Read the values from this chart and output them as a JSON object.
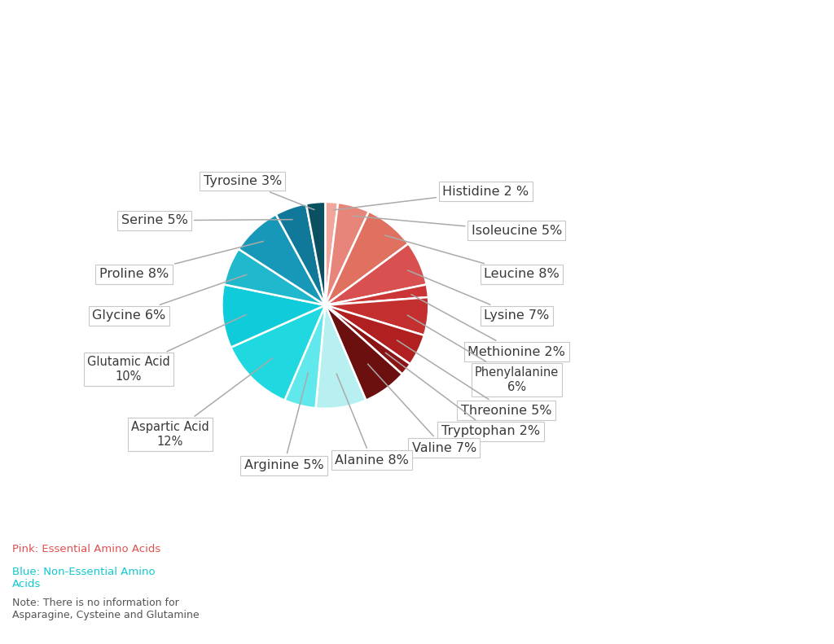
{
  "slices": [
    {
      "label": "Histidine 2 %",
      "value": 2,
      "color": "#F2A59A",
      "essential": true
    },
    {
      "label": "Isoleucine 5%",
      "value": 5,
      "color": "#E8857A",
      "essential": true
    },
    {
      "label": "Leucine 8%",
      "value": 8,
      "color": "#E07060",
      "essential": true
    },
    {
      "label": "Lysine 7%",
      "value": 7,
      "color": "#D95050",
      "essential": true
    },
    {
      "label": "Methionine 2%",
      "value": 2,
      "color": "#CC3535",
      "essential": true
    },
    {
      "label": "Phenylalanine\n6%",
      "value": 6,
      "color": "#C43030",
      "essential": true
    },
    {
      "label": "Threonine 5%",
      "value": 5,
      "color": "#B02020",
      "essential": true
    },
    {
      "label": "Tryptophan 2%",
      "value": 2,
      "color": "#8B1515",
      "essential": true
    },
    {
      "label": "Valine 7%",
      "value": 7,
      "color": "#6B0F0F",
      "essential": true
    },
    {
      "label": "Alanine 8%",
      "value": 8,
      "color": "#B8F0F2",
      "essential": false
    },
    {
      "label": "Arginine 5%",
      "value": 5,
      "color": "#60E8EC",
      "essential": false
    },
    {
      "label": "Aspartic Acid\n12%",
      "value": 12,
      "color": "#20D8E0",
      "essential": false
    },
    {
      "label": "Glutamic Acid\n10%",
      "value": 10,
      "color": "#10CCDA",
      "essential": false
    },
    {
      "label": "Glycine 6%",
      "value": 6,
      "color": "#20B8CC",
      "essential": false
    },
    {
      "label": "Proline 8%",
      "value": 8,
      "color": "#1898B8",
      "essential": false
    },
    {
      "label": "Serine 5%",
      "value": 5,
      "color": "#107898",
      "essential": false
    },
    {
      "label": "Tyrosine 3%",
      "value": 3,
      "color": "#0A5060",
      "essential": false
    }
  ],
  "background_color": "#FFFFFF",
  "wedge_edge_color": "#FFFFFF",
  "wedge_edge_width": 1.8,
  "label_font_size": 11.5,
  "annotation_color_essential": "#E05050",
  "annotation_color_nonessential": "#10C8D0",
  "annotation_color_note": "#555555"
}
